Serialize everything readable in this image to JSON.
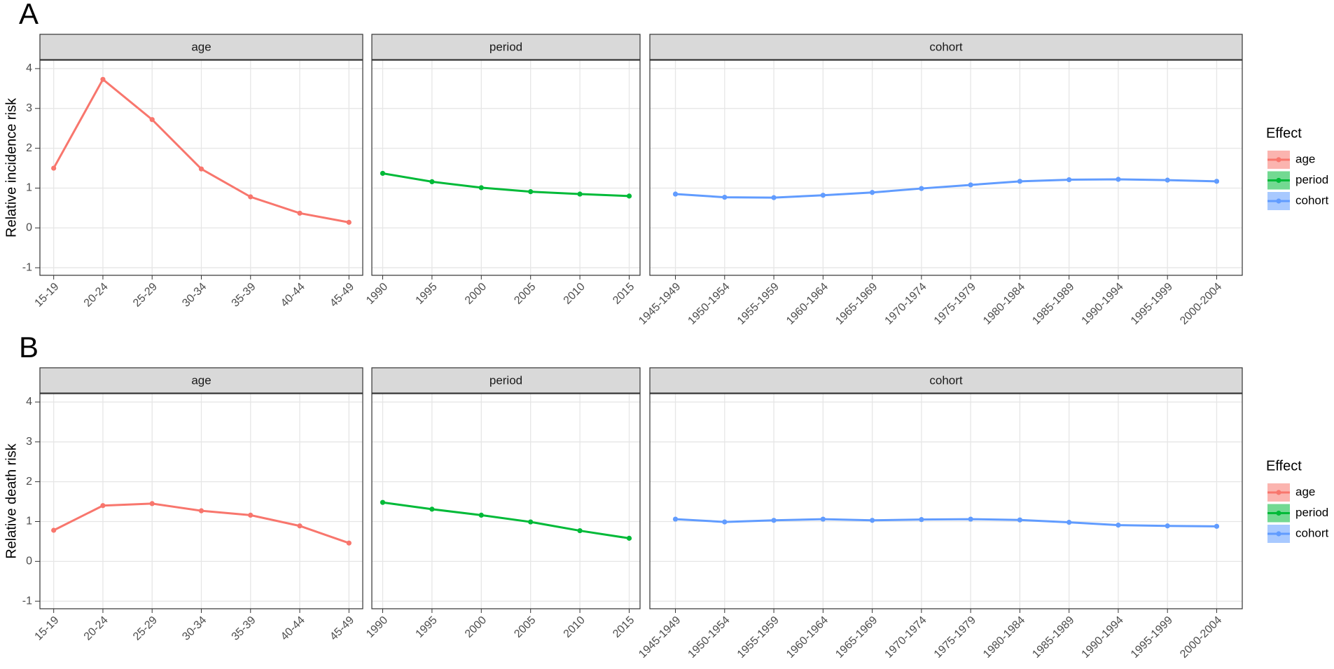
{
  "chart_data": [
    {
      "type": "line",
      "panel_label": "A",
      "y_label": "Relative incidence risk",
      "ylim": [
        -1.19,
        4.21
      ],
      "yticks": [
        -1,
        0,
        1,
        2,
        3,
        4
      ],
      "grid": true,
      "legend_title": "Effect",
      "facets": [
        {
          "title": "age",
          "categories": [
            "15-19",
            "20-24",
            "25-29",
            "30-34",
            "35-39",
            "40-44",
            "45-49"
          ],
          "series": [
            {
              "name": "age",
              "color": "#F8766D",
              "values": [
                1.5,
                3.73,
                2.72,
                1.48,
                0.78,
                0.37,
                0.14
              ]
            }
          ]
        },
        {
          "title": "period",
          "categories": [
            "1990",
            "1995",
            "2000",
            "2005",
            "2010",
            "2015"
          ],
          "series": [
            {
              "name": "period",
              "color": "#00BA38",
              "values": [
                1.37,
                1.16,
                1.01,
                0.91,
                0.85,
                0.8
              ]
            }
          ]
        },
        {
          "title": "cohort",
          "categories": [
            "1945-1949",
            "1950-1954",
            "1955-1959",
            "1960-1964",
            "1965-1969",
            "1970-1974",
            "1975-1979",
            "1980-1984",
            "1985-1989",
            "1990-1994",
            "1995-1999",
            "2000-2004"
          ],
          "series": [
            {
              "name": "cohort",
              "color": "#619CFF",
              "values": [
                0.85,
                0.77,
                0.76,
                0.82,
                0.89,
                0.99,
                1.08,
                1.17,
                1.21,
                1.22,
                1.2,
                1.17
              ]
            }
          ]
        }
      ]
    },
    {
      "type": "line",
      "panel_label": "B",
      "y_label": "Relative death risk",
      "ylim": [
        -1.19,
        4.21
      ],
      "yticks": [
        -1,
        0,
        1,
        2,
        3,
        4
      ],
      "grid": true,
      "legend_title": "Effect",
      "facets": [
        {
          "title": "age",
          "categories": [
            "15-19",
            "20-24",
            "25-29",
            "30-34",
            "35-39",
            "40-44",
            "45-49"
          ],
          "series": [
            {
              "name": "age",
              "color": "#F8766D",
              "values": [
                0.78,
                1.4,
                1.45,
                1.27,
                1.16,
                0.89,
                0.46
              ]
            }
          ]
        },
        {
          "title": "period",
          "categories": [
            "1990",
            "1995",
            "2000",
            "2005",
            "2010",
            "2015"
          ],
          "series": [
            {
              "name": "period",
              "color": "#00BA38",
              "values": [
                1.48,
                1.31,
                1.16,
                0.99,
                0.77,
                0.58
              ]
            }
          ]
        },
        {
          "title": "cohort",
          "categories": [
            "1945-1949",
            "1950-1954",
            "1955-1959",
            "1960-1964",
            "1965-1969",
            "1970-1974",
            "1975-1979",
            "1980-1984",
            "1985-1989",
            "1990-1994",
            "1995-1999",
            "2000-2004"
          ],
          "series": [
            {
              "name": "cohort",
              "color": "#619CFF",
              "values": [
                1.06,
                0.99,
                1.03,
                1.06,
                1.03,
                1.05,
                1.06,
                1.04,
                0.98,
                0.91,
                0.89,
                0.88
              ]
            }
          ]
        }
      ]
    }
  ]
}
